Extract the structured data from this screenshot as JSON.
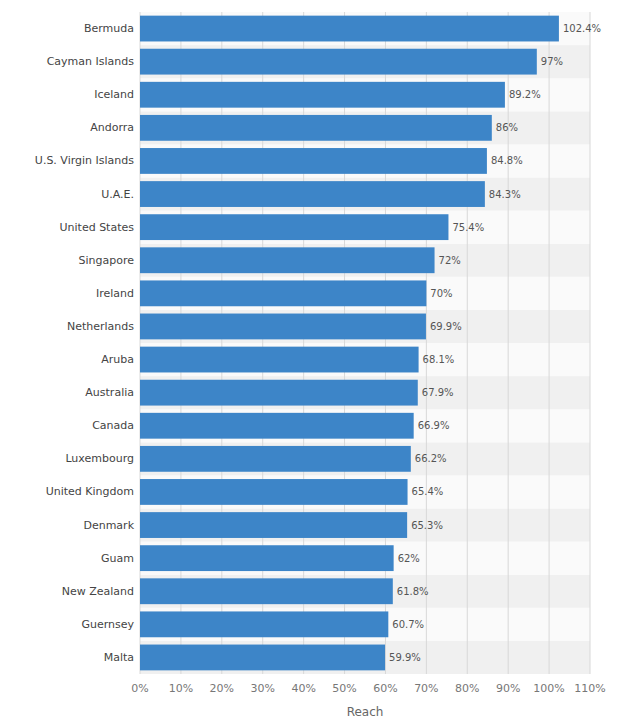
{
  "chart_data": {
    "type": "bar",
    "orientation": "horizontal",
    "categories": [
      "Malta",
      "Guernsey",
      "New Zealand",
      "Guam",
      "Denmark",
      "United Kingdom",
      "Luxembourg",
      "Canada",
      "Australia",
      "Aruba",
      "Netherlands",
      "Ireland",
      "Singapore",
      "United States",
      "U.A.E.",
      "U.S. Virgin Islands",
      "Andorra",
      "Iceland",
      "Cayman Islands",
      "Bermuda"
    ],
    "values": [
      59.9,
      60.7,
      61.8,
      62.0,
      65.3,
      65.4,
      66.2,
      66.9,
      67.9,
      68.1,
      69.9,
      70.0,
      72.0,
      75.4,
      84.3,
      84.8,
      86.0,
      89.2,
      97.0,
      102.4
    ],
    "value_labels": [
      "59.9%",
      "60.7%",
      "61.8%",
      "62%",
      "65.3%",
      "65.4%",
      "66.2%",
      "66.9%",
      "67.9%",
      "68.1%",
      "69.9%",
      "70%",
      "72%",
      "75.4%",
      "84.3%",
      "84.8%",
      "86%",
      "89.2%",
      "97%",
      "102.4%"
    ],
    "data_labels": true,
    "color": "#3d85c8",
    "x_label": "Reach",
    "xlim": [
      0,
      110
    ],
    "xticks": [
      {
        "value": 0,
        "label": "0%"
      },
      {
        "value": 10,
        "label": "10%"
      },
      {
        "value": 20,
        "label": "20%"
      },
      {
        "value": 30,
        "label": "30%"
      },
      {
        "value": 40,
        "label": "40%"
      },
      {
        "value": 50,
        "label": "50%"
      },
      {
        "value": 60,
        "label": "60%"
      },
      {
        "value": 70,
        "label": "70%"
      },
      {
        "value": 80,
        "label": "80%"
      },
      {
        "value": 90,
        "label": "90%"
      },
      {
        "value": 100,
        "label": "100%"
      },
      {
        "value": 110,
        "label": "110%"
      }
    ],
    "grid": true
  }
}
